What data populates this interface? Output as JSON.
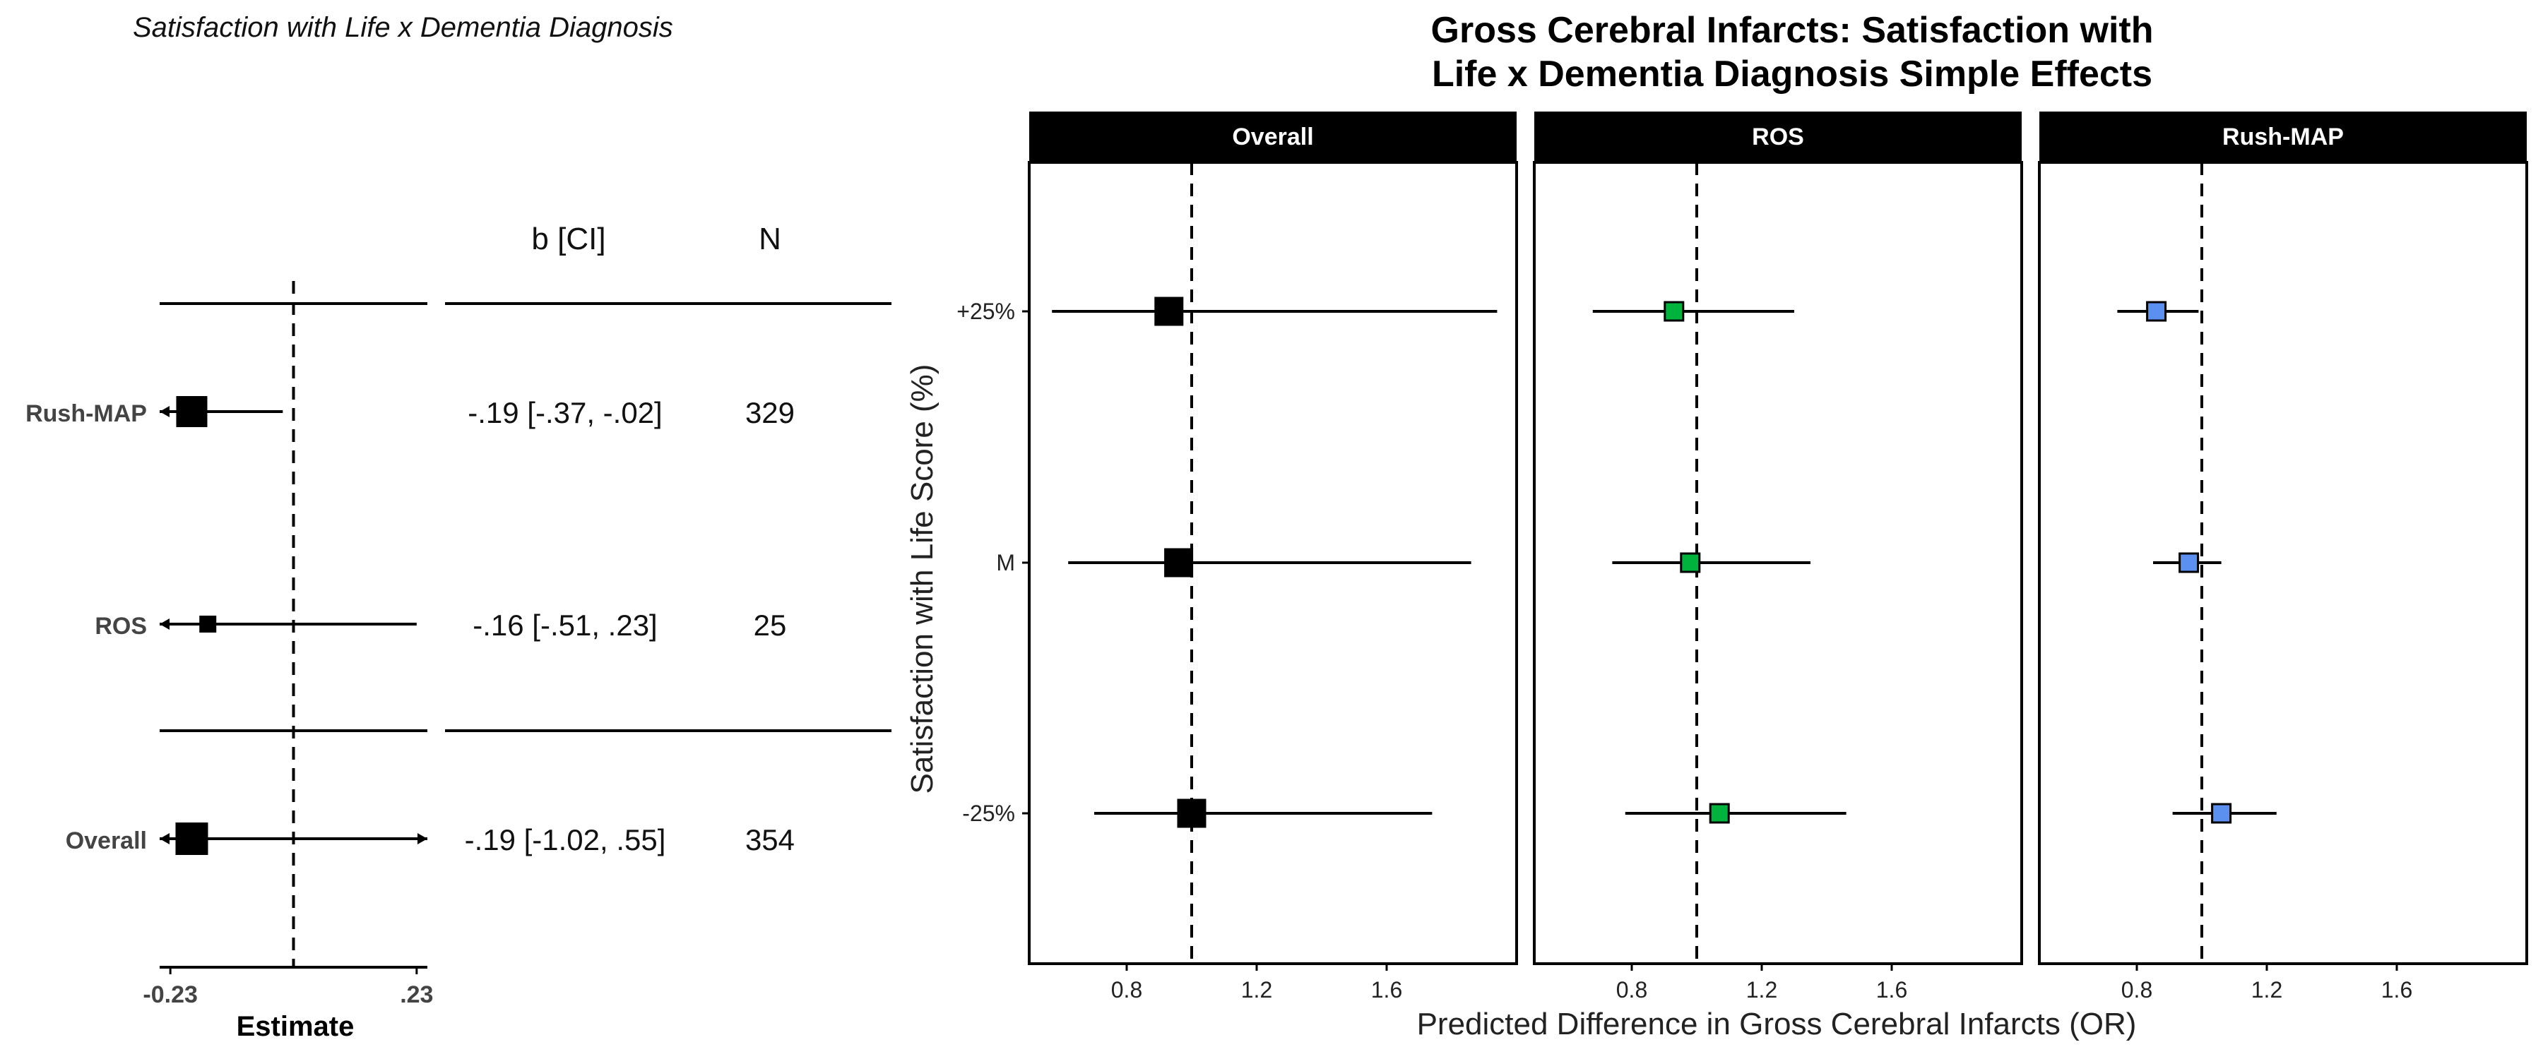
{
  "forest": {
    "title": "Satisfaction with Life x Dementia Diagnosis",
    "col_b": "b [CI]",
    "col_n": "N",
    "xlabel": "Estimate",
    "xticks": [
      {
        "value": -0.23,
        "label": "-0.23"
      },
      {
        "value": 0.23,
        "label": ".23"
      }
    ],
    "xrange": [
      -0.25,
      0.25
    ],
    "ref_line": 0,
    "rows": [
      {
        "label": "Rush-MAP",
        "estimate": -0.19,
        "lower": -0.37,
        "upper": -0.02,
        "ci_text": "-.19 [-.37, -.02]",
        "n": "329",
        "clipped_lower": true,
        "clipped_upper": false
      },
      {
        "label": "ROS",
        "estimate": -0.16,
        "lower": -0.51,
        "upper": 0.23,
        "ci_text": "-.16 [-.51, .23]",
        "n": "25",
        "clipped_lower": true,
        "clipped_upper": false
      },
      {
        "label": "Overall",
        "estimate": -0.19,
        "lower": -1.02,
        "upper": 0.55,
        "ci_text": "-.19 [-1.02, .55]",
        "n": "354",
        "clipped_lower": true,
        "clipped_upper": true
      }
    ]
  },
  "chart_data": {
    "type": "scatter",
    "title_line1": "Gross Cerebral Infarcts: Satisfaction with",
    "title_line2": "Life x Dementia Diagnosis Simple Effects",
    "xlabel": "Predicted Difference in Gross Cerebral Infarcts (OR)",
    "ylabel": "Satisfaction with Life Score (%)",
    "categories": [
      "+25%",
      "M",
      "-25%"
    ],
    "xlim": [
      0.5,
      2.0
    ],
    "xticks": [
      0.8,
      1.2,
      1.6
    ],
    "ref_line": 1.0,
    "panels": [
      {
        "name": "Overall",
        "color": "#000000",
        "points": [
          {
            "y": "+25%",
            "or": 0.93,
            "lower": 0.57,
            "upper": 1.94
          },
          {
            "y": "M",
            "or": 0.96,
            "lower": 0.62,
            "upper": 1.86
          },
          {
            "y": "-25%",
            "or": 1.0,
            "lower": 0.7,
            "upper": 1.74
          }
        ]
      },
      {
        "name": "ROS",
        "color": "#00b33c",
        "points": [
          {
            "y": "+25%",
            "or": 0.93,
            "lower": 0.68,
            "upper": 1.3
          },
          {
            "y": "M",
            "or": 0.98,
            "lower": 0.74,
            "upper": 1.35
          },
          {
            "y": "-25%",
            "or": 1.07,
            "lower": 0.78,
            "upper": 1.46
          }
        ]
      },
      {
        "name": "Rush-MAP",
        "color": "#5b8ff0",
        "points": [
          {
            "y": "+25%",
            "or": 0.86,
            "lower": 0.74,
            "upper": 0.99
          },
          {
            "y": "M",
            "or": 0.96,
            "lower": 0.85,
            "upper": 1.06
          },
          {
            "y": "-25%",
            "or": 1.06,
            "lower": 0.91,
            "upper": 1.23
          }
        ]
      }
    ]
  }
}
